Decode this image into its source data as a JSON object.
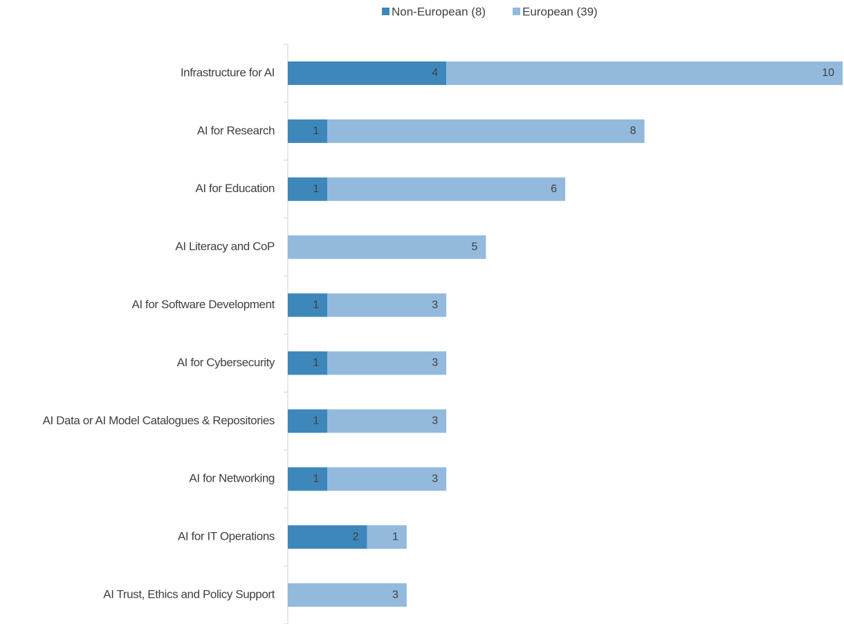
{
  "chart_data": {
    "type": "stacked-bar-horizontal",
    "categories": [
      "Infrastructure for AI",
      "AI for Research",
      "AI for Education",
      "AI Literacy and CoP",
      "AI for Software Development",
      "AI for Cybersecurity",
      "AI Data or AI Model Catalogues & Repositories",
      "AI for Networking",
      "AI for IT Operations",
      "AI Trust, Ethics and Policy Support"
    ],
    "series": [
      {
        "name": "Non-European (8)",
        "color": "#3e87bb",
        "values": [
          4,
          1,
          1,
          null,
          1,
          1,
          1,
          1,
          2,
          null
        ]
      },
      {
        "name": "European (39)",
        "color": "#93b9dd",
        "values": [
          10,
          8,
          6,
          5,
          3,
          3,
          3,
          3,
          1,
          3
        ]
      }
    ],
    "legend": "top"
  }
}
